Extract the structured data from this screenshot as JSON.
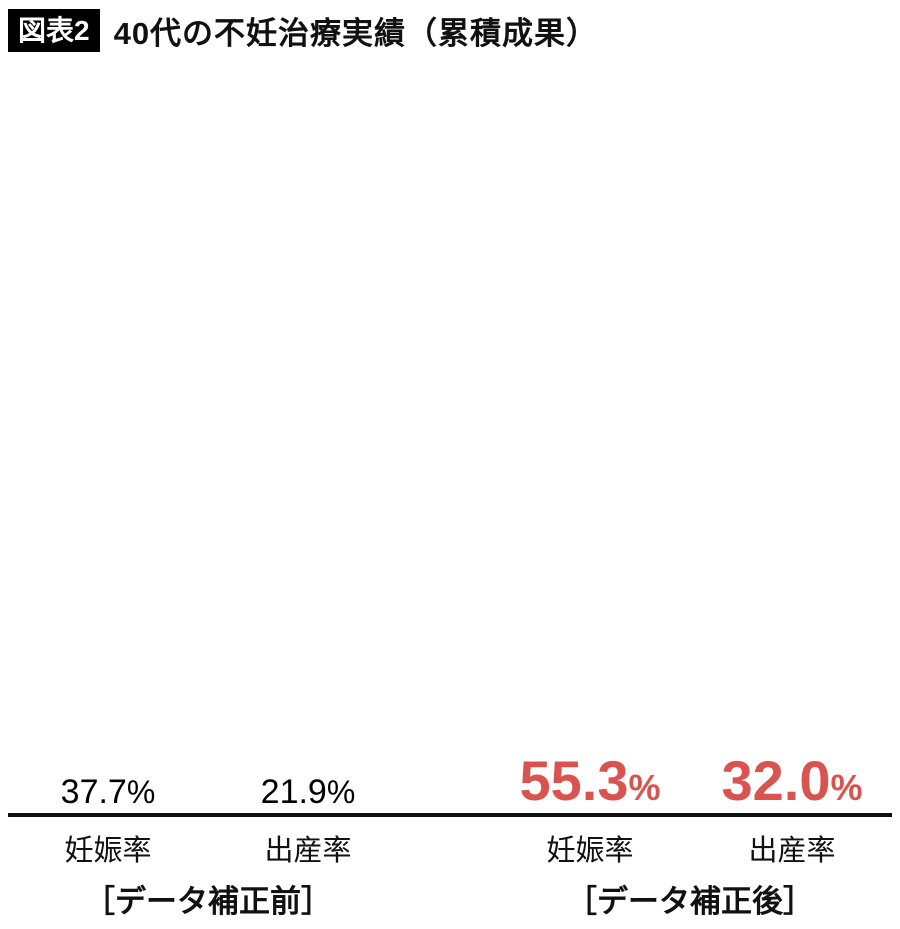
{
  "header": {
    "badge": "図表2",
    "title": "40代の不妊治療実績（累積成果）"
  },
  "chart_data": {
    "type": "bar",
    "title": "40代の不妊治療実績（累積成果）",
    "xlabel": "",
    "ylabel": "",
    "ylim": [
      0,
      60
    ],
    "grid": false,
    "legend": "none",
    "unit": "%",
    "groups": [
      {
        "label": "［データ補正前］",
        "bar_color": "#a9c45c",
        "value_color": "#000000",
        "bars": [
          {
            "category": "妊娠率",
            "value": 37.7,
            "value_text": "37.7",
            "unit": "%"
          },
          {
            "category": "出産率",
            "value": 21.9,
            "value_text": "21.9",
            "unit": "%"
          }
        ]
      },
      {
        "label": "［データ補正後］",
        "bar_color": "#d9534f",
        "value_color": "#d9534f",
        "bars": [
          {
            "category": "妊娠率",
            "value": 55.3,
            "value_text": "55.3",
            "unit": "%"
          },
          {
            "category": "出産率",
            "value": 32.0,
            "value_text": "32.0",
            "unit": "%"
          }
        ]
      }
    ]
  }
}
